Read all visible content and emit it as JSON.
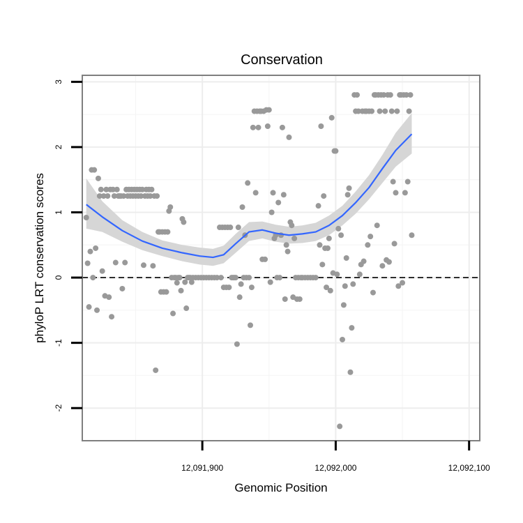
{
  "chart_data": {
    "type": "scatter",
    "title": "Conservation",
    "xlabel": "Genomic Position",
    "ylabel": "phyloP LRT conservation scores",
    "xlim": [
      12091810,
      12092108
    ],
    "ylim": [
      -2.5,
      3.1
    ],
    "x_ticks": [
      {
        "value": 12091900,
        "label": "12,091,900"
      },
      {
        "value": 12092000,
        "label": "12,092,000"
      },
      {
        "value": 12092100,
        "label": "12,092,100"
      }
    ],
    "y_ticks": [
      {
        "value": -2,
        "label": "-2"
      },
      {
        "value": -1,
        "label": "-1"
      },
      {
        "value": 0,
        "label": "0"
      },
      {
        "value": 1,
        "label": "1"
      },
      {
        "value": 2,
        "label": "2"
      },
      {
        "value": 3,
        "label": "3"
      }
    ],
    "reference_line": {
      "y": 0,
      "style": "dashed"
    },
    "grid": true,
    "point_color": "#999999",
    "smooth_color": "#3366FF",
    "band_color": "#d6d6d6",
    "points": [
      [
        12091813,
        0.92
      ],
      [
        12091814,
        0.22
      ],
      [
        12091815,
        -0.45
      ],
      [
        12091816,
        0.4
      ],
      [
        12091817,
        1.65
      ],
      [
        12091818,
        0.0
      ],
      [
        12091819,
        1.65
      ],
      [
        12091820,
        0.45
      ],
      [
        12091821,
        -0.5
      ],
      [
        12091822,
        1.52
      ],
      [
        12091823,
        1.25
      ],
      [
        12091824,
        1.35
      ],
      [
        12091825,
        0.1
      ],
      [
        12091826,
        1.25
      ],
      [
        12091827,
        -0.28
      ],
      [
        12091828,
        1.35
      ],
      [
        12091829,
        1.25
      ],
      [
        12091830,
        -0.3
      ],
      [
        12091831,
        1.35
      ],
      [
        12091832,
        -0.6
      ],
      [
        12091833,
        1.35
      ],
      [
        12091834,
        1.25
      ],
      [
        12091835,
        0.23
      ],
      [
        12091836,
        1.35
      ],
      [
        12091837,
        1.25
      ],
      [
        12091838,
        1.25
      ],
      [
        12091839,
        1.25
      ],
      [
        12091840,
        -0.17
      ],
      [
        12091841,
        1.25
      ],
      [
        12091842,
        0.23
      ],
      [
        12091843,
        1.35
      ],
      [
        12091844,
        1.25
      ],
      [
        12091845,
        1.35
      ],
      [
        12091846,
        1.25
      ],
      [
        12091847,
        1.35
      ],
      [
        12091848,
        1.25
      ],
      [
        12091849,
        1.35
      ],
      [
        12091850,
        1.25
      ],
      [
        12091851,
        1.35
      ],
      [
        12091852,
        1.25
      ],
      [
        12091853,
        1.35
      ],
      [
        12091854,
        1.25
      ],
      [
        12091855,
        1.35
      ],
      [
        12091856,
        0.19
      ],
      [
        12091857,
        1.25
      ],
      [
        12091858,
        1.35
      ],
      [
        12091859,
        1.25
      ],
      [
        12091860,
        1.35
      ],
      [
        12091861,
        1.25
      ],
      [
        12091862,
        1.35
      ],
      [
        12091863,
        0.18
      ],
      [
        12091864,
        1.25
      ],
      [
        12091865,
        -1.42
      ],
      [
        12091866,
        1.25
      ],
      [
        12091867,
        0.7
      ],
      [
        12091868,
        0.7
      ],
      [
        12091869,
        -0.22
      ],
      [
        12091870,
        0.7
      ],
      [
        12091871,
        -0.22
      ],
      [
        12091872,
        0.7
      ],
      [
        12091873,
        -0.22
      ],
      [
        12091874,
        0.7
      ],
      [
        12091875,
        1.02
      ],
      [
        12091876,
        1.08
      ],
      [
        12091877,
        0.0
      ],
      [
        12091878,
        -0.55
      ],
      [
        12091879,
        0.0
      ],
      [
        12091880,
        0.0
      ],
      [
        12091881,
        -0.08
      ],
      [
        12091882,
        0.0
      ],
      [
        12091883,
        0.0
      ],
      [
        12091884,
        -0.2
      ],
      [
        12091885,
        0.9
      ],
      [
        12091886,
        0.85
      ],
      [
        12091887,
        -0.07
      ],
      [
        12091888,
        -0.47
      ],
      [
        12091889,
        0.0
      ],
      [
        12091890,
        0.0
      ],
      [
        12091891,
        0.0
      ],
      [
        12091892,
        -0.07
      ],
      [
        12091893,
        0.0
      ],
      [
        12091895,
        0.0
      ],
      [
        12091897,
        0.0
      ],
      [
        12091899,
        0.0
      ],
      [
        12091901,
        0.0
      ],
      [
        12091903,
        0.0
      ],
      [
        12091905,
        0.0
      ],
      [
        12091907,
        0.0
      ],
      [
        12091909,
        0.0
      ],
      [
        12091911,
        0.0
      ],
      [
        12091913,
        0.77
      ],
      [
        12091914,
        0.0
      ],
      [
        12091915,
        0.77
      ],
      [
        12091916,
        -0.15
      ],
      [
        12091917,
        0.77
      ],
      [
        12091918,
        -0.15
      ],
      [
        12091919,
        0.77
      ],
      [
        12091920,
        -0.15
      ],
      [
        12091921,
        0.77
      ],
      [
        12091922,
        0.0
      ],
      [
        12091923,
        0.0
      ],
      [
        12091924,
        0.0
      ],
      [
        12091925,
        0.0
      ],
      [
        12091926,
        -1.02
      ],
      [
        12091927,
        0.77
      ],
      [
        12091928,
        -0.3
      ],
      [
        12091929,
        -0.1
      ],
      [
        12091930,
        1.08
      ],
      [
        12091931,
        0.0
      ],
      [
        12091932,
        0.65
      ],
      [
        12091933,
        0.0
      ],
      [
        12091934,
        1.45
      ],
      [
        12091935,
        0.0
      ],
      [
        12091936,
        -0.73
      ],
      [
        12091937,
        -0.15
      ],
      [
        12091938,
        2.3
      ],
      [
        12091939,
        2.55
      ],
      [
        12091940,
        1.3
      ],
      [
        12091941,
        2.55
      ],
      [
        12091942,
        2.3
      ],
      [
        12091943,
        2.55
      ],
      [
        12091944,
        2.55
      ],
      [
        12091945,
        0.28
      ],
      [
        12091946,
        2.55
      ],
      [
        12091947,
        0.28
      ],
      [
        12091948,
        2.57
      ],
      [
        12091949,
        2.32
      ],
      [
        12091950,
        2.57
      ],
      [
        12091951,
        -0.07
      ],
      [
        12091952,
        1.0
      ],
      [
        12091953,
        1.3
      ],
      [
        12091954,
        0.6
      ],
      [
        12091955,
        0.65
      ],
      [
        12091956,
        0.0
      ],
      [
        12091957,
        1.15
      ],
      [
        12091958,
        0.0
      ],
      [
        12091959,
        0.65
      ],
      [
        12091960,
        2.3
      ],
      [
        12091961,
        1.27
      ],
      [
        12091962,
        -0.33
      ],
      [
        12091963,
        0.5
      ],
      [
        12091964,
        0.4
      ],
      [
        12091965,
        2.15
      ],
      [
        12091966,
        0.85
      ],
      [
        12091967,
        0.8
      ],
      [
        12091968,
        -0.3
      ],
      [
        12091969,
        0.6
      ],
      [
        12091970,
        0.0
      ],
      [
        12091971,
        -0.33
      ],
      [
        12091972,
        0.0
      ],
      [
        12091973,
        -0.33
      ],
      [
        12091974,
        0.0
      ],
      [
        12091975,
        0.0
      ],
      [
        12091977,
        0.0
      ],
      [
        12091979,
        0.0
      ],
      [
        12091981,
        0.0
      ],
      [
        12091983,
        0.0
      ],
      [
        12091985,
        0.0
      ],
      [
        12091987,
        1.1
      ],
      [
        12091988,
        0.5
      ],
      [
        12091989,
        2.32
      ],
      [
        12091990,
        0.2
      ],
      [
        12091991,
        1.25
      ],
      [
        12091992,
        0.45
      ],
      [
        12091993,
        -0.15
      ],
      [
        12091994,
        0.45
      ],
      [
        12091995,
        0.6
      ],
      [
        12091996,
        -0.2
      ],
      [
        12091997,
        2.45
      ],
      [
        12091998,
        0.07
      ],
      [
        12091999,
        1.94
      ],
      [
        12092000,
        1.94
      ],
      [
        12092001,
        0.05
      ],
      [
        12092002,
        0.75
      ],
      [
        12092003,
        -2.28
      ],
      [
        12092004,
        0.65
      ],
      [
        12092005,
        -0.95
      ],
      [
        12092006,
        -0.42
      ],
      [
        12092007,
        -0.13
      ],
      [
        12092008,
        0.3
      ],
      [
        12092009,
        1.27
      ],
      [
        12092010,
        1.37
      ],
      [
        12092011,
        -1.45
      ],
      [
        12092012,
        -0.77
      ],
      [
        12092013,
        -0.1
      ],
      [
        12092014,
        2.8
      ],
      [
        12092015,
        2.55
      ],
      [
        12092016,
        2.8
      ],
      [
        12092017,
        2.55
      ],
      [
        12092018,
        0.05
      ],
      [
        12092019,
        0.2
      ],
      [
        12092020,
        2.55
      ],
      [
        12092021,
        0.25
      ],
      [
        12092022,
        2.55
      ],
      [
        12092023,
        2.55
      ],
      [
        12092024,
        0.5
      ],
      [
        12092025,
        2.55
      ],
      [
        12092026,
        0.63
      ],
      [
        12092027,
        2.55
      ],
      [
        12092028,
        -0.23
      ],
      [
        12092029,
        2.8
      ],
      [
        12092030,
        2.8
      ],
      [
        12092031,
        0.8
      ],
      [
        12092032,
        2.8
      ],
      [
        12092033,
        2.55
      ],
      [
        12092034,
        2.8
      ],
      [
        12092035,
        0.18
      ],
      [
        12092036,
        2.8
      ],
      [
        12092037,
        2.55
      ],
      [
        12092038,
        0.27
      ],
      [
        12092039,
        2.8
      ],
      [
        12092040,
        0.24
      ],
      [
        12092041,
        2.8
      ],
      [
        12092042,
        2.55
      ],
      [
        12092043,
        1.47
      ],
      [
        12092044,
        0.52
      ],
      [
        12092045,
        1.3
      ],
      [
        12092046,
        2.55
      ],
      [
        12092047,
        -0.13
      ],
      [
        12092048,
        2.8
      ],
      [
        12092049,
        2.8
      ],
      [
        12092050,
        -0.08
      ],
      [
        12092051,
        2.8
      ],
      [
        12092052,
        1.3
      ],
      [
        12092053,
        2.8
      ],
      [
        12092054,
        1.47
      ],
      [
        12092055,
        2.55
      ],
      [
        12092056,
        2.8
      ],
      [
        12092057,
        0.65
      ]
    ],
    "smooth_curve": [
      [
        12091813,
        1.12,
        0.75,
        1.52
      ],
      [
        12091825,
        0.93,
        0.7,
        1.17
      ],
      [
        12091840,
        0.72,
        0.55,
        0.88
      ],
      [
        12091855,
        0.56,
        0.42,
        0.7
      ],
      [
        12091870,
        0.45,
        0.33,
        0.57
      ],
      [
        12091885,
        0.38,
        0.25,
        0.5
      ],
      [
        12091898,
        0.33,
        0.2,
        0.46
      ],
      [
        12091908,
        0.31,
        0.18,
        0.44
      ],
      [
        12091916,
        0.35,
        0.22,
        0.49
      ],
      [
        12091925,
        0.52,
        0.38,
        0.67
      ],
      [
        12091935,
        0.7,
        0.56,
        0.85
      ],
      [
        12091945,
        0.73,
        0.6,
        0.86
      ],
      [
        12091955,
        0.68,
        0.55,
        0.81
      ],
      [
        12091965,
        0.65,
        0.52,
        0.78
      ],
      [
        12091975,
        0.67,
        0.53,
        0.8
      ],
      [
        12091985,
        0.7,
        0.56,
        0.84
      ],
      [
        12091995,
        0.8,
        0.65,
        0.95
      ],
      [
        12092005,
        0.95,
        0.8,
        1.1
      ],
      [
        12092015,
        1.15,
        0.98,
        1.32
      ],
      [
        12092025,
        1.38,
        1.2,
        1.57
      ],
      [
        12092035,
        1.67,
        1.45,
        1.88
      ],
      [
        12092045,
        1.95,
        1.7,
        2.22
      ],
      [
        12092057,
        2.2,
        1.9,
        2.52
      ]
    ]
  }
}
